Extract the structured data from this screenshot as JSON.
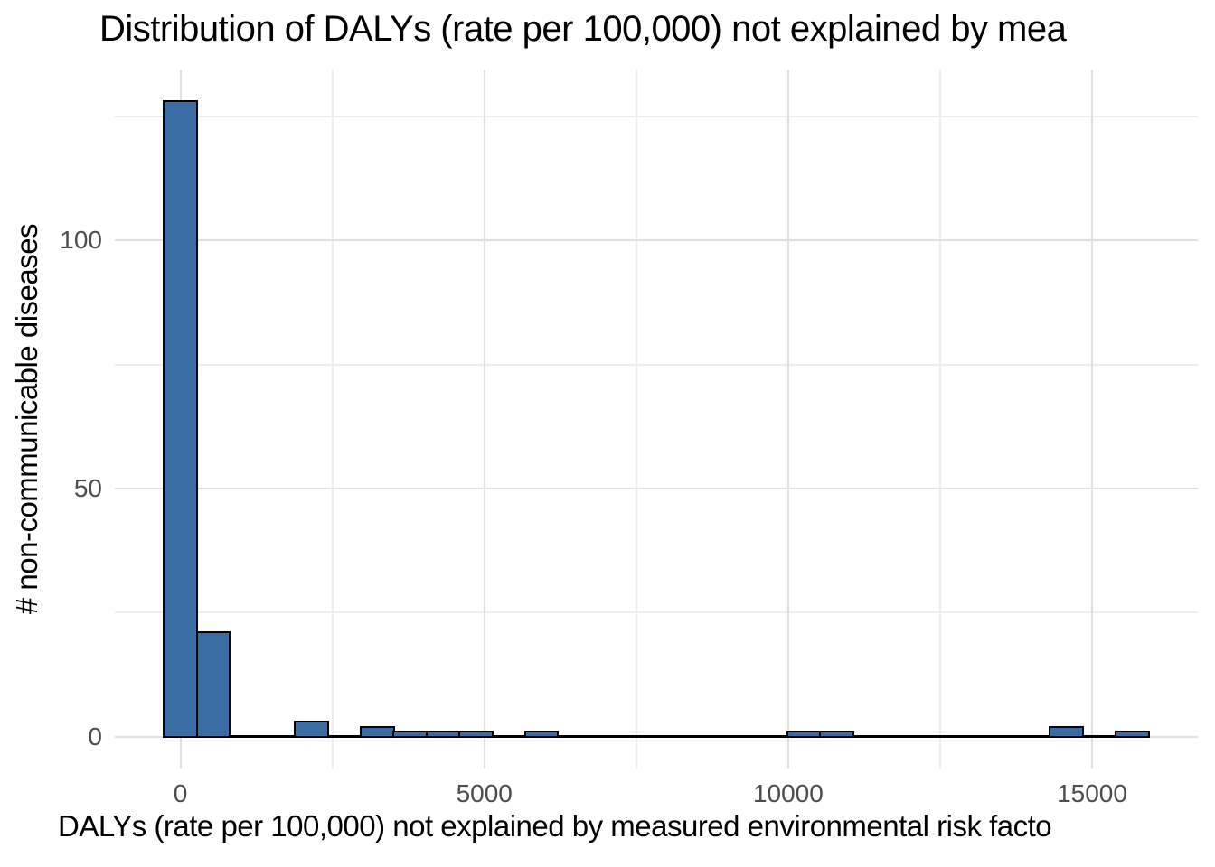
{
  "chart_data": {
    "type": "bar",
    "subtype": "histogram",
    "title": "Distribution of DALYs (rate per 100,000) not explained by mea",
    "xlabel": "DALYs (rate per 100,000) not explained by measured environmental risk facto",
    "ylabel": "# non-communicable diseases",
    "bin_start": -270,
    "bin_width": 540,
    "counts": [
      128,
      21,
      0,
      0,
      3,
      0,
      2,
      1,
      1,
      1,
      0,
      1,
      0,
      0,
      0,
      0,
      0,
      0,
      0,
      1,
      1,
      0,
      0,
      0,
      0,
      0,
      0,
      2,
      0,
      1
    ],
    "nonzero_bins": [
      {
        "center": 0,
        "count": 128
      },
      {
        "center": 540,
        "count": 21
      },
      {
        "center": 2160,
        "count": 3
      },
      {
        "center": 3240,
        "count": 2
      },
      {
        "center": 3780,
        "count": 1
      },
      {
        "center": 4320,
        "count": 1
      },
      {
        "center": 4860,
        "count": 1
      },
      {
        "center": 5940,
        "count": 1
      },
      {
        "center": 10260,
        "count": 1
      },
      {
        "center": 10800,
        "count": 1
      },
      {
        "center": 14580,
        "count": 2
      },
      {
        "center": 15660,
        "count": 1
      }
    ],
    "x_axis": {
      "tick_labels": [
        "0",
        "5000",
        "10000",
        "15000"
      ],
      "tick_values": [
        0,
        5000,
        10000,
        15000
      ],
      "minor_tick_values": [
        2500,
        7500,
        12500
      ],
      "range": [
        -1080,
        16740
      ]
    },
    "y_axis": {
      "tick_labels": [
        "0",
        "50",
        "100"
      ],
      "tick_values": [
        0,
        50,
        100
      ],
      "minor_tick_values": [
        25,
        75,
        125
      ],
      "range": [
        -6.4,
        134.4
      ]
    },
    "grid": "on",
    "legend": "none",
    "colors": {
      "bar_fill": "#3a6da3",
      "bar_stroke": "#000000",
      "grid_major": "#e0e0e0",
      "grid_minor": "#ededed",
      "axis_text": "#4d4d4d",
      "title_text": "#000000",
      "background": "#ffffff"
    }
  }
}
